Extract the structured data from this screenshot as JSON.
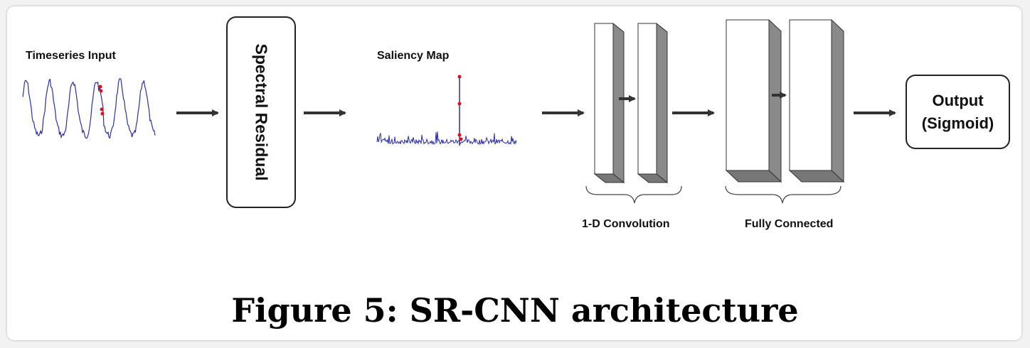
{
  "diagram": {
    "input_label": "Timeseries Input",
    "spectral_label": "Spectral Residual",
    "saliency_label": "Saliency Map",
    "conv_label": "1-D Convolution",
    "fc_label": "Fully Connected",
    "output_line1": "Output",
    "output_line2": "(Sigmoid)"
  },
  "caption": "Figure 5: SR-CNN architecture",
  "colors": {
    "signal": "#2b2fa8",
    "anomaly": "#e0101a",
    "arrow": "#333333",
    "block_side": "#8a8a8a"
  }
}
